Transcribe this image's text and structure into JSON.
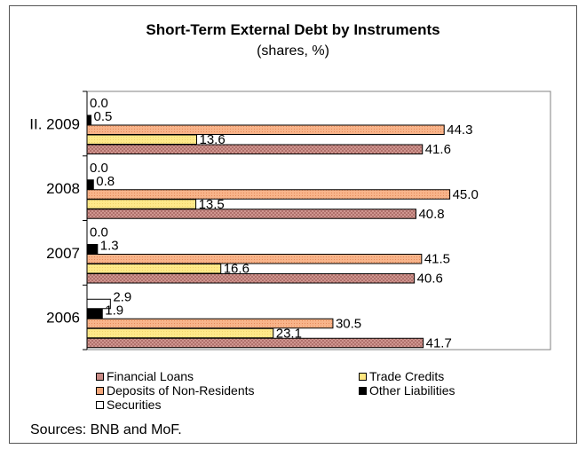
{
  "chart_data": {
    "type": "bar",
    "orientation": "horizontal",
    "title": "Short-Term External Debt by Instruments",
    "subtitle": "(shares, %)",
    "source": "Sources: BNB and MoF.",
    "categories": [
      "II. 2009",
      "2008",
      "2007",
      "2006"
    ],
    "series": [
      {
        "name": "Securities",
        "color": "#ffffff",
        "values": [
          0.0,
          0.0,
          0.0,
          2.9
        ],
        "labels": [
          "0.0",
          "0.0",
          "0.0",
          "2.9"
        ]
      },
      {
        "name": "Other Liabilities",
        "color": "#000000",
        "values": [
          0.5,
          0.8,
          1.3,
          1.9
        ],
        "labels": [
          "0.5",
          "0.8",
          "1.3",
          "1.9"
        ]
      },
      {
        "name": "Deposits of Non-Residents",
        "color": "#f4a77a",
        "values": [
          44.3,
          45.0,
          41.5,
          30.5
        ],
        "labels": [
          "44.3",
          "45.0",
          "41.5",
          "30.5"
        ]
      },
      {
        "name": "Trade Credits",
        "color": "#ffe680",
        "values": [
          13.6,
          13.5,
          16.6,
          23.1
        ],
        "labels": [
          "13.6",
          "13.5",
          "16.6",
          "23.1"
        ]
      },
      {
        "name": "Financial Loans",
        "color": "#c98b86",
        "values": [
          41.6,
          40.8,
          40.6,
          41.7
        ],
        "labels": [
          "41.6",
          "40.8",
          "40.6",
          "41.7"
        ]
      }
    ],
    "xlim": [
      0,
      50
    ],
    "grid": false,
    "legend_position": "bottom"
  },
  "legend": {
    "financial_loans": "Financial Loans",
    "trade_credits": "Trade Credits",
    "deposits": "Deposits of Non-Residents",
    "other_liabilities": "Other Liabilities",
    "securities": "Securities"
  }
}
